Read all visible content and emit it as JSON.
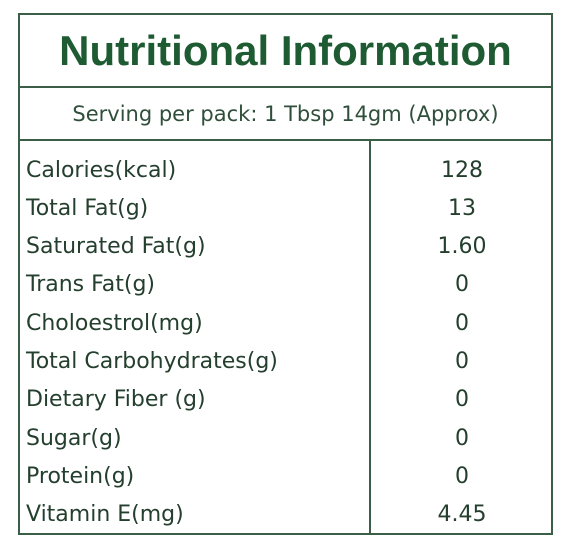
{
  "title": "Nutritional Information",
  "serving": "Serving per pack: 1 Tbsp 14gm (Approx)",
  "rows": [
    {
      "label": "Calories(kcal)",
      "value": "128"
    },
    {
      "label": "Total Fat(g)",
      "value": "13"
    },
    {
      "label": "Saturated Fat(g)",
      "value": "1.60"
    },
    {
      "label": "Trans Fat(g)",
      "value": "0"
    },
    {
      "label": "Choloestrol(mg)",
      "value": "0"
    },
    {
      "label": "Total Carbohydrates(g)",
      "value": "0"
    },
    {
      "label": "Dietary Fiber (g)",
      "value": "0"
    },
    {
      "label": "Sugar(g)",
      "value": "0"
    },
    {
      "label": "Protein(g)",
      "value": "0"
    },
    {
      "label": "Vitamin E(mg)",
      "value": "4.45"
    }
  ],
  "colors": {
    "border": "#3a5f46",
    "title": "#1e5a32",
    "text": "#243f2e"
  }
}
